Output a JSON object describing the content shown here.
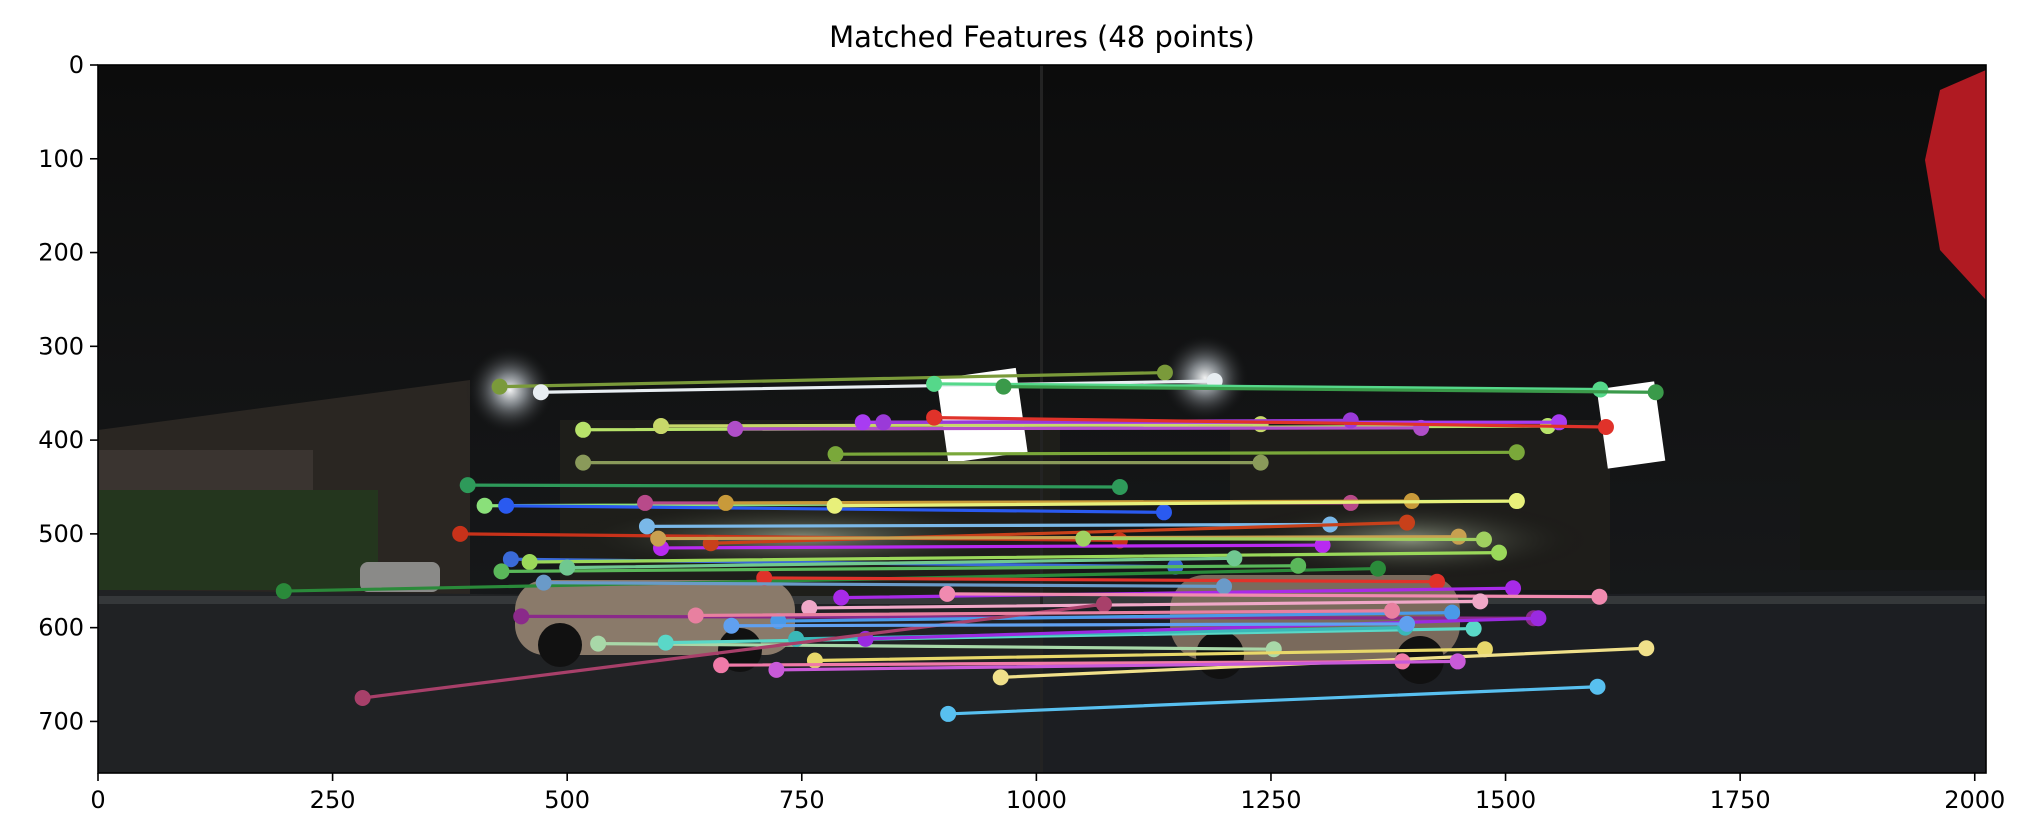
{
  "chart_data": {
    "type": "scatter",
    "title": "Matched Features (48 points)",
    "xlabel": "",
    "ylabel": "",
    "xlim": [
      0,
      2012
    ],
    "ylim": [
      755,
      0
    ],
    "x_ticks": [
      "0",
      "250",
      "500",
      "750",
      "1000",
      "1250",
      "1500",
      "1750",
      "2000"
    ],
    "y_ticks": [
      "0",
      "100",
      "200",
      "300",
      "400",
      "500",
      "600",
      "700"
    ],
    "background": "night photograph of two side-by-side images of a 7-Eleven store and parked car",
    "matches": [
      {
        "x1": 428,
        "y1": 343,
        "x2": 1137,
        "y2": 328,
        "color": "#7a9a3a"
      },
      {
        "x1": 472,
        "y1": 349,
        "x2": 1190,
        "y2": 337,
        "color": "#e8eef2"
      },
      {
        "x1": 891,
        "y1": 340,
        "x2": 1601,
        "y2": 346,
        "color": "#55d88a"
      },
      {
        "x1": 965,
        "y1": 343,
        "x2": 1660,
        "y2": 349,
        "color": "#3a9a4a"
      },
      {
        "x1": 517,
        "y1": 389,
        "x2": 1545,
        "y2": 385,
        "color": "#b8e36a"
      },
      {
        "x1": 600,
        "y1": 385,
        "x2": 1239,
        "y2": 383,
        "color": "#c8d86a"
      },
      {
        "x1": 679,
        "y1": 388,
        "x2": 1410,
        "y2": 387,
        "color": "#b04ec8"
      },
      {
        "x1": 815,
        "y1": 381,
        "x2": 1557,
        "y2": 381,
        "color": "#a83cf2"
      },
      {
        "x1": 837,
        "y1": 381,
        "x2": 1335,
        "y2": 379,
        "color": "#9a3ad8"
      },
      {
        "x1": 891,
        "y1": 376,
        "x2": 1607,
        "y2": 386,
        "color": "#e0322a"
      },
      {
        "x1": 517,
        "y1": 424,
        "x2": 1239,
        "y2": 424,
        "color": "#8a9a5a"
      },
      {
        "x1": 786,
        "y1": 415,
        "x2": 1512,
        "y2": 413,
        "color": "#7aa83a"
      },
      {
        "x1": 394,
        "y1": 448,
        "x2": 1089,
        "y2": 450,
        "color": "#2e9a5a"
      },
      {
        "x1": 412,
        "y1": 470,
        "x2": 1512,
        "y2": 465,
        "color": "#8ae07a"
      },
      {
        "x1": 435,
        "y1": 470,
        "x2": 1136,
        "y2": 477,
        "color": "#2a5af0"
      },
      {
        "x1": 583,
        "y1": 467,
        "x2": 1335,
        "y2": 467,
        "color": "#b84a8a"
      },
      {
        "x1": 669,
        "y1": 467,
        "x2": 1400,
        "y2": 465,
        "color": "#c89a3a"
      },
      {
        "x1": 785,
        "y1": 470,
        "x2": 1512,
        "y2": 465,
        "color": "#e8f07a"
      },
      {
        "x1": 386,
        "y1": 500,
        "x2": 1089,
        "y2": 507,
        "color": "#c8321a"
      },
      {
        "x1": 585,
        "y1": 492,
        "x2": 1313,
        "y2": 490,
        "color": "#7ab8e8"
      },
      {
        "x1": 600,
        "y1": 515,
        "x2": 1305,
        "y2": 512,
        "color": "#b82af0"
      },
      {
        "x1": 653,
        "y1": 510,
        "x2": 1395,
        "y2": 488,
        "color": "#c8401a"
      },
      {
        "x1": 440,
        "y1": 527,
        "x2": 1148,
        "y2": 535,
        "color": "#3a6ad8"
      },
      {
        "x1": 460,
        "y1": 530,
        "x2": 1493,
        "y2": 520,
        "color": "#9ad85a"
      },
      {
        "x1": 198,
        "y1": 561,
        "x2": 1364,
        "y2": 537,
        "color": "#2a8a3a"
      },
      {
        "x1": 710,
        "y1": 547,
        "x2": 1427,
        "y2": 551,
        "color": "#e0322a"
      },
      {
        "x1": 430,
        "y1": 540,
        "x2": 1279,
        "y2": 534,
        "color": "#5ab85a"
      },
      {
        "x1": 792,
        "y1": 568,
        "x2": 1508,
        "y2": 558,
        "color": "#a82ae8"
      },
      {
        "x1": 475,
        "y1": 552,
        "x2": 1200,
        "y2": 556,
        "color": "#6a9ac8"
      },
      {
        "x1": 905,
        "y1": 564,
        "x2": 1600,
        "y2": 567,
        "color": "#f08ab0"
      },
      {
        "x1": 758,
        "y1": 579,
        "x2": 1473,
        "y2": 572,
        "color": "#f0a8c8"
      },
      {
        "x1": 451,
        "y1": 588,
        "x2": 1530,
        "y2": 590,
        "color": "#8a2a8a"
      },
      {
        "x1": 725,
        "y1": 593,
        "x2": 1443,
        "y2": 584,
        "color": "#4a9ae8"
      },
      {
        "x1": 533,
        "y1": 617,
        "x2": 1253,
        "y2": 623,
        "color": "#a8d8a8"
      },
      {
        "x1": 605,
        "y1": 616,
        "x2": 1466,
        "y2": 601,
        "color": "#5ad8c8"
      },
      {
        "x1": 744,
        "y1": 612,
        "x2": 1393,
        "y2": 600,
        "color": "#3ab8b8"
      },
      {
        "x1": 818,
        "y1": 612,
        "x2": 1535,
        "y2": 590,
        "color": "#9a2ae0"
      },
      {
        "x1": 764,
        "y1": 635,
        "x2": 1478,
        "y2": 623,
        "color": "#e8d86a"
      },
      {
        "x1": 962,
        "y1": 653,
        "x2": 1650,
        "y2": 622,
        "color": "#f0e08a"
      },
      {
        "x1": 664,
        "y1": 640,
        "x2": 1390,
        "y2": 636,
        "color": "#f07aa8"
      },
      {
        "x1": 723,
        "y1": 645,
        "x2": 1449,
        "y2": 636,
        "color": "#c85ad8"
      },
      {
        "x1": 282,
        "y1": 675,
        "x2": 1072,
        "y2": 575,
        "color": "#a8406a"
      },
      {
        "x1": 906,
        "y1": 692,
        "x2": 1598,
        "y2": 663,
        "color": "#58c0f0"
      },
      {
        "x1": 597,
        "y1": 505,
        "x2": 1450,
        "y2": 503,
        "color": "#c8a050"
      },
      {
        "x1": 637,
        "y1": 587,
        "x2": 1379,
        "y2": 582,
        "color": "#e880a0"
      },
      {
        "x1": 500,
        "y1": 536,
        "x2": 1211,
        "y2": 526,
        "color": "#70c890"
      },
      {
        "x1": 675,
        "y1": 598,
        "x2": 1395,
        "y2": 596,
        "color": "#60a0f0"
      },
      {
        "x1": 1050,
        "y1": 505,
        "x2": 1477,
        "y2": 506,
        "color": "#a0d060"
      }
    ]
  }
}
